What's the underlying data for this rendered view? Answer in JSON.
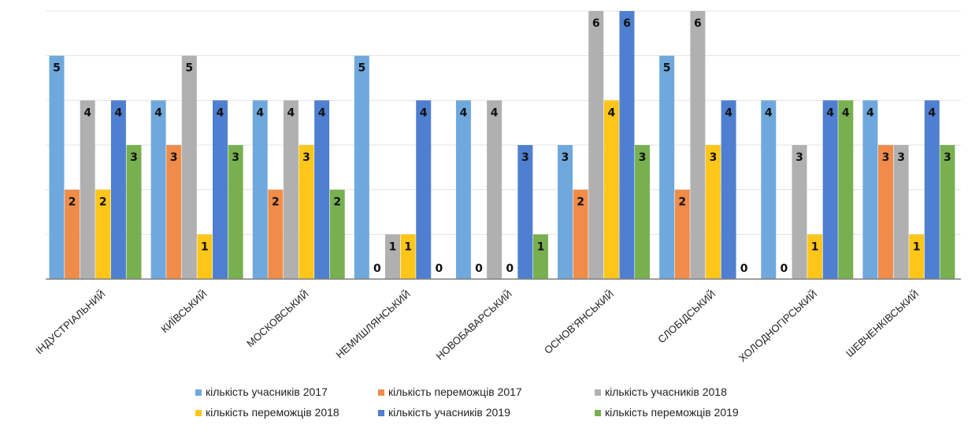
{
  "chart_data": {
    "type": "bar",
    "categories": [
      "ІНДУСТРІАЛЬНИЙ",
      "КИЇВСЬКИЙ",
      "МОСКОВСЬКИЙ",
      "НЕМИШЛЯНСЬКИЙ",
      "НОВОБАВАРСЬКИЙ",
      "ОСНОВ'ЯНСЬКИЙ",
      "СЛОБІДСЬКИЙ",
      "ХОЛОДНОГІРСЬКИЙ",
      "ШЕВЧЕНКІВСЬКИЙ"
    ],
    "series": [
      {
        "name": "кількість учасників 2017",
        "color": "#6fa8dc",
        "values": [
          5,
          4,
          4,
          5,
          4,
          3,
          5,
          4,
          4
        ]
      },
      {
        "name": "кількість переможців 2017",
        "color": "#f08c4a",
        "values": [
          2,
          3,
          2,
          0,
          0,
          2,
          2,
          0,
          3
        ]
      },
      {
        "name": "кількість учасників 2018",
        "color": "#b0b0b0",
        "values": [
          4,
          5,
          4,
          1,
          4,
          6,
          6,
          3,
          3
        ]
      },
      {
        "name": "кількість переможців 2018",
        "color": "#ffc61a",
        "values": [
          2,
          1,
          3,
          1,
          0,
          4,
          3,
          1,
          1
        ]
      },
      {
        "name": "кількість учасників 2019",
        "color": "#4f7fd0",
        "values": [
          4,
          4,
          4,
          4,
          3,
          6,
          4,
          4,
          4
        ]
      },
      {
        "name": "кількість переможців 2019",
        "color": "#78b050",
        "values": [
          3,
          3,
          2,
          0,
          1,
          3,
          0,
          4,
          3
        ]
      }
    ],
    "ylim": [
      0,
      6
    ],
    "grid": true,
    "legend_position": "bottom",
    "data_labels": true
  }
}
